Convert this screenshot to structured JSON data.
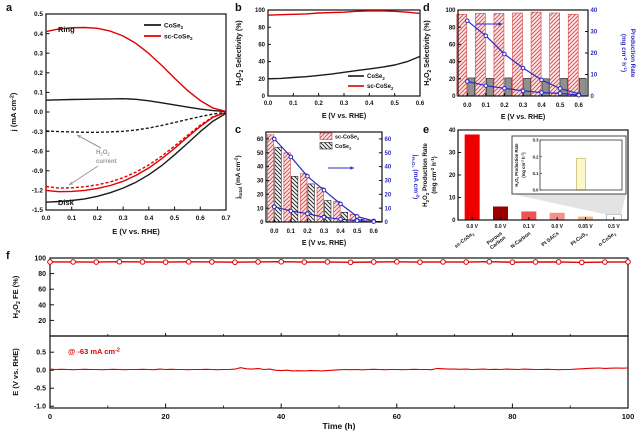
{
  "colors": {
    "red": "#e00000",
    "black": "#1a1a1a",
    "blue": "#2a2ac4",
    "gray": "#999999",
    "gray_bar": "#8f8f8f",
    "hatch_red_line": "#e05454",
    "hatch_red_bg": "#fce9e9",
    "shade": "#d9d9d9"
  },
  "chart_data": [
    {
      "id": "a",
      "label": "a",
      "type": "line",
      "xlabel": "E (V vs. RHE)",
      "ylabel": "j (mA cm^{-2})",
      "xlim": [
        0,
        0.7
      ],
      "xticks": [
        0,
        0.1,
        0.2,
        0.3,
        0.4,
        0.5,
        0.6,
        0.7
      ],
      "y_axis_break": {
        "top_range": [
          0,
          0.5
        ],
        "top_ticks": [
          0.5,
          0.4,
          0.3,
          0.2,
          0.1,
          0
        ],
        "bottom_range": [
          -1.5,
          0
        ],
        "bottom_ticks": [
          -0.3,
          -0.6,
          -0.9,
          -1.2,
          -1.5
        ]
      },
      "annotations": {
        "ring": "Ring",
        "disk": "Disk",
        "h2o2_current": [
          "H_{2}O_{2}",
          "current"
        ]
      },
      "legend": [
        {
          "label": "CoSe_{2}",
          "color": "black"
        },
        {
          "label": "sc-CoSe_{2}",
          "color": "red"
        }
      ],
      "x": [
        0,
        0.05,
        0.1,
        0.15,
        0.2,
        0.25,
        0.3,
        0.35,
        0.4,
        0.45,
        0.5,
        0.55,
        0.6,
        0.65,
        0.7
      ],
      "series": [
        {
          "name": "CoSe2 ring current",
          "color": "black",
          "dash": false,
          "y": [
            0.06,
            0.062,
            0.064,
            0.065,
            0.066,
            0.067,
            0.068,
            0.065,
            0.057,
            0.047,
            0.036,
            0.025,
            0.015,
            0.007,
            0.002
          ]
        },
        {
          "name": "sc-CoSe2 ring current",
          "color": "red",
          "dash": false,
          "y": [
            0.41,
            0.424,
            0.43,
            0.431,
            0.427,
            0.413,
            0.388,
            0.35,
            0.298,
            0.238,
            0.172,
            0.11,
            0.058,
            0.02,
            0.003
          ]
        },
        {
          "name": "CoSe2 disk current",
          "color": "black",
          "dash": false,
          "y": [
            -1.38,
            -1.37,
            -1.355,
            -1.33,
            -1.29,
            -1.235,
            -1.165,
            -1.075,
            -0.96,
            -0.82,
            -0.655,
            -0.48,
            -0.3,
            -0.14,
            -0.02
          ]
        },
        {
          "name": "sc-CoSe2 disk current",
          "color": "red",
          "dash": false,
          "y": [
            -1.2,
            -1.22,
            -1.215,
            -1.2,
            -1.17,
            -1.125,
            -1.06,
            -0.97,
            -0.855,
            -0.715,
            -0.555,
            -0.385,
            -0.22,
            -0.08,
            -0.005
          ]
        },
        {
          "name": "CoSe2 H2O2 current",
          "color": "black",
          "dash": true,
          "y": [
            -0.29,
            -0.3,
            -0.305,
            -0.31,
            -0.31,
            -0.305,
            -0.295,
            -0.275,
            -0.245,
            -0.205,
            -0.16,
            -0.115,
            -0.07,
            -0.03,
            -0.005
          ]
        },
        {
          "name": "sc-CoSe2 H2O2 current",
          "color": "red",
          "dash": true,
          "y": [
            -1.14,
            -1.165,
            -1.16,
            -1.145,
            -1.115,
            -1.07,
            -1.005,
            -0.92,
            -0.81,
            -0.675,
            -0.52,
            -0.36,
            -0.2,
            -0.07,
            -0.003
          ]
        }
      ]
    },
    {
      "id": "b",
      "label": "b",
      "type": "line",
      "xlabel": "E (V vs. RHE)",
      "ylabel": "H_{2}O_{2} Selectivity (%)",
      "xlim": [
        0,
        0.6
      ],
      "xticks": [
        0,
        0.1,
        0.2,
        0.3,
        0.4,
        0.5,
        0.6
      ],
      "ylim": [
        0,
        100
      ],
      "yticks": [
        0,
        20,
        40,
        60,
        80,
        100
      ],
      "legend": [
        {
          "label": "CoSe_{2}",
          "color": "black"
        },
        {
          "label": "sc-CoSe_{2}",
          "color": "red"
        }
      ],
      "x": [
        0,
        0.05,
        0.1,
        0.15,
        0.2,
        0.25,
        0.3,
        0.35,
        0.4,
        0.45,
        0.5,
        0.55,
        0.6
      ],
      "series": [
        {
          "name": "CoSe2 selectivity",
          "color": "black",
          "y": [
            20,
            20.5,
            21.5,
            22.5,
            24,
            25.5,
            27.5,
            29.5,
            31.5,
            33.5,
            36,
            40,
            46
          ]
        },
        {
          "name": "sc-CoSe2 selectivity",
          "color": "red",
          "y": [
            94,
            94.5,
            95,
            95.5,
            96.5,
            97,
            97.5,
            98.5,
            99,
            99,
            98.5,
            97.5,
            96
          ]
        }
      ]
    },
    {
      "id": "c",
      "label": "c",
      "type": "bar+line",
      "xlabel": "E (V vs. RHE)",
      "ylabel_left": "j_{total} (mA cm^{-2})",
      "ylabel_right": "j_{H₂O₂} (mA cm^{-2})",
      "categories": [
        "0.0",
        "0.1",
        "0.2",
        "0.3",
        "0.4",
        "0.5",
        "0.6"
      ],
      "ylim": [
        0,
        65
      ],
      "yticks": [
        0,
        10,
        20,
        30,
        40,
        50,
        60
      ],
      "legend": [
        {
          "label": "sc-CoSe_{2}",
          "swatch": "hatch-red"
        },
        {
          "label": "CoSe_{2}",
          "swatch": "hatch-black"
        }
      ],
      "bars": [
        {
          "name": "sc-CoSe2 j_total",
          "values": [
            63,
            50,
            35,
            25,
            15,
            5.5,
            1.5
          ]
        },
        {
          "name": "CoSe2 j_total",
          "values": [
            54,
            33,
            27.5,
            15.5,
            7,
            2,
            0.5
          ]
        }
      ],
      "lines": [
        {
          "name": "sc-CoSe2 j_H2O2",
          "values": [
            60,
            47,
            33,
            23,
            13,
            4,
            0.8
          ]
        },
        {
          "name": "CoSe2 j_H2O2",
          "values": [
            11,
            8,
            6,
            3.5,
            2,
            1,
            0.3
          ]
        }
      ]
    },
    {
      "id": "d",
      "label": "d",
      "type": "bar+line",
      "xlabel": "E (V vs. RHE)",
      "ylabel_left": "H_{2}O_{2} Selectivity (%)",
      "ylabel_right": [
        "Production Rate",
        "(mg cm^{-2} h^{-1})"
      ],
      "categories": [
        "0.0",
        "0.1",
        "0.2",
        "0.3",
        "0.4",
        "0.5",
        "0.6"
      ],
      "ylim_left": [
        0,
        100
      ],
      "yticks_left": [
        0,
        20,
        40,
        60,
        80,
        100
      ],
      "ylim_right": [
        0,
        40
      ],
      "yticks_right": [
        0,
        10,
        20,
        30,
        40
      ],
      "bars": [
        {
          "name": "sc-CoSe2 selectivity",
          "values": [
            95,
            96,
            96,
            96.5,
            97.5,
            96.5,
            95
          ]
        },
        {
          "name": "CoSe2 selectivity",
          "values": [
            21,
            20.5,
            21,
            20.5,
            20,
            20.5,
            20.5
          ]
        }
      ],
      "lines": [
        {
          "name": "sc-CoSe2 production rate",
          "values": [
            35,
            28,
            19.5,
            13,
            7.5,
            3.5,
            1
          ]
        },
        {
          "name": "CoSe2 production rate",
          "values": [
            6.8,
            4.8,
            3.6,
            2.4,
            1.6,
            1.2,
            0.4
          ]
        }
      ]
    },
    {
      "id": "e",
      "label": "e",
      "type": "bar",
      "ylabel": [
        "H_{2}O_{2} Production Rate",
        "(mg cm^{-2} h^{-1})"
      ],
      "ylim": [
        0,
        40
      ],
      "yticks": [
        0,
        10,
        20,
        30,
        40
      ],
      "categories": [
        [
          "sc-CoSe_{2}"
        ],
        [
          "Porous",
          "Carbon"
        ],
        [
          "N-Carbon"
        ],
        [
          "Pt SACs"
        ],
        [
          "Pt-CuS_{x}"
        ],
        [
          "o-CoSe_{2}"
        ]
      ],
      "tick_labels": [
        "0.0 V",
        "0.0 V",
        "0.1 V",
        "0.0 V",
        "0.05 V",
        "0.5 V"
      ],
      "values": [
        38,
        6,
        3.8,
        3.2,
        1.5,
        0.19
      ],
      "bar_colors": [
        "#ee0000",
        "#9b0000",
        "#ef5350",
        "#f4918c",
        "#f6b583",
        "none"
      ],
      "inset": {
        "ylabel": [
          "H_{2}O_{2} Production Rate",
          "(mg cm^{-2} h^{-1})"
        ],
        "ylim": [
          0,
          0.3
        ],
        "yticks": [
          0,
          0.1,
          0.2,
          0.3
        ],
        "value": 0.19,
        "bar_color": "#fcf8c9",
        "bar_edge": "#c9c06f"
      }
    },
    {
      "id": "f",
      "label": "f",
      "type": "line",
      "xlabel": "Time (h)",
      "xlim": [
        0,
        100
      ],
      "xticks": [
        0,
        20,
        40,
        60,
        80,
        100
      ],
      "top": {
        "ylabel": "H_{2}O_{2} FE (%)",
        "ylim": [
          0,
          100
        ],
        "yticks": [
          20,
          40,
          60,
          80,
          100
        ],
        "t": [
          0,
          4,
          8,
          12,
          16,
          20,
          24,
          28,
          32,
          36,
          40,
          44,
          48,
          52,
          56,
          60,
          64,
          68,
          72,
          76,
          80,
          84,
          88,
          92,
          96,
          100
        ],
        "v": [
          95,
          95,
          94.8,
          95.2,
          95,
          94.7,
          95.1,
          95,
          94.6,
          95,
          95.2,
          94.8,
          95,
          94.5,
          94.9,
          95.1,
          94.7,
          95,
          94.8,
          95.2,
          94.6,
          94.9,
          95,
          94.4,
          94.8,
          95
        ]
      },
      "bottom": {
        "ylabel": "E (V vs. RHE)",
        "ylim": [
          -1.05,
          0.95
        ],
        "yticks": [
          -1.0,
          -0.5,
          0.0,
          0.5
        ],
        "annotation": "@ -63 mA cm^{-2}",
        "t_step": 1,
        "v": [
          0.03,
          0.02,
          0.025,
          0.02,
          0.015,
          0.02,
          0.025,
          0.02,
          0.02,
          0.015,
          0.02,
          0.025,
          0.02,
          0.015,
          0.02,
          0.02,
          0.025,
          0.02,
          0.015,
          0.03,
          0.02,
          0.025,
          0.02,
          0.02,
          0.015,
          0.02,
          0.02,
          0.025,
          0.02,
          0.015,
          0.02,
          0.02,
          0.03,
          0.07,
          0.04,
          0.03,
          0.05,
          0.02,
          0.03,
          0.0,
          -0.01,
          0.0,
          -0.02,
          -0.015,
          -0.02,
          -0.01,
          -0.015,
          -0.02,
          -0.01,
          0.0,
          0.01,
          0.02,
          0.015,
          0.02,
          0.01,
          0.02,
          0.025,
          0.02,
          0.015,
          0.02,
          0.02,
          0.015,
          0.02,
          0.025,
          0.02,
          0.02,
          0.015,
          0.05,
          0.04,
          0.03,
          0.03,
          0.025,
          0.03,
          0.02,
          0.025,
          0.03,
          0.02,
          0.025,
          0.02,
          0.03,
          0.025,
          0.02,
          0.03,
          0.025,
          0.02,
          0.02,
          0.025,
          0.02,
          0.015,
          0.02,
          0.02,
          0.03,
          0.04,
          0.05,
          0.055,
          0.06,
          0.05,
          0.055,
          0.06,
          0.055,
          0.06
        ]
      }
    }
  ]
}
